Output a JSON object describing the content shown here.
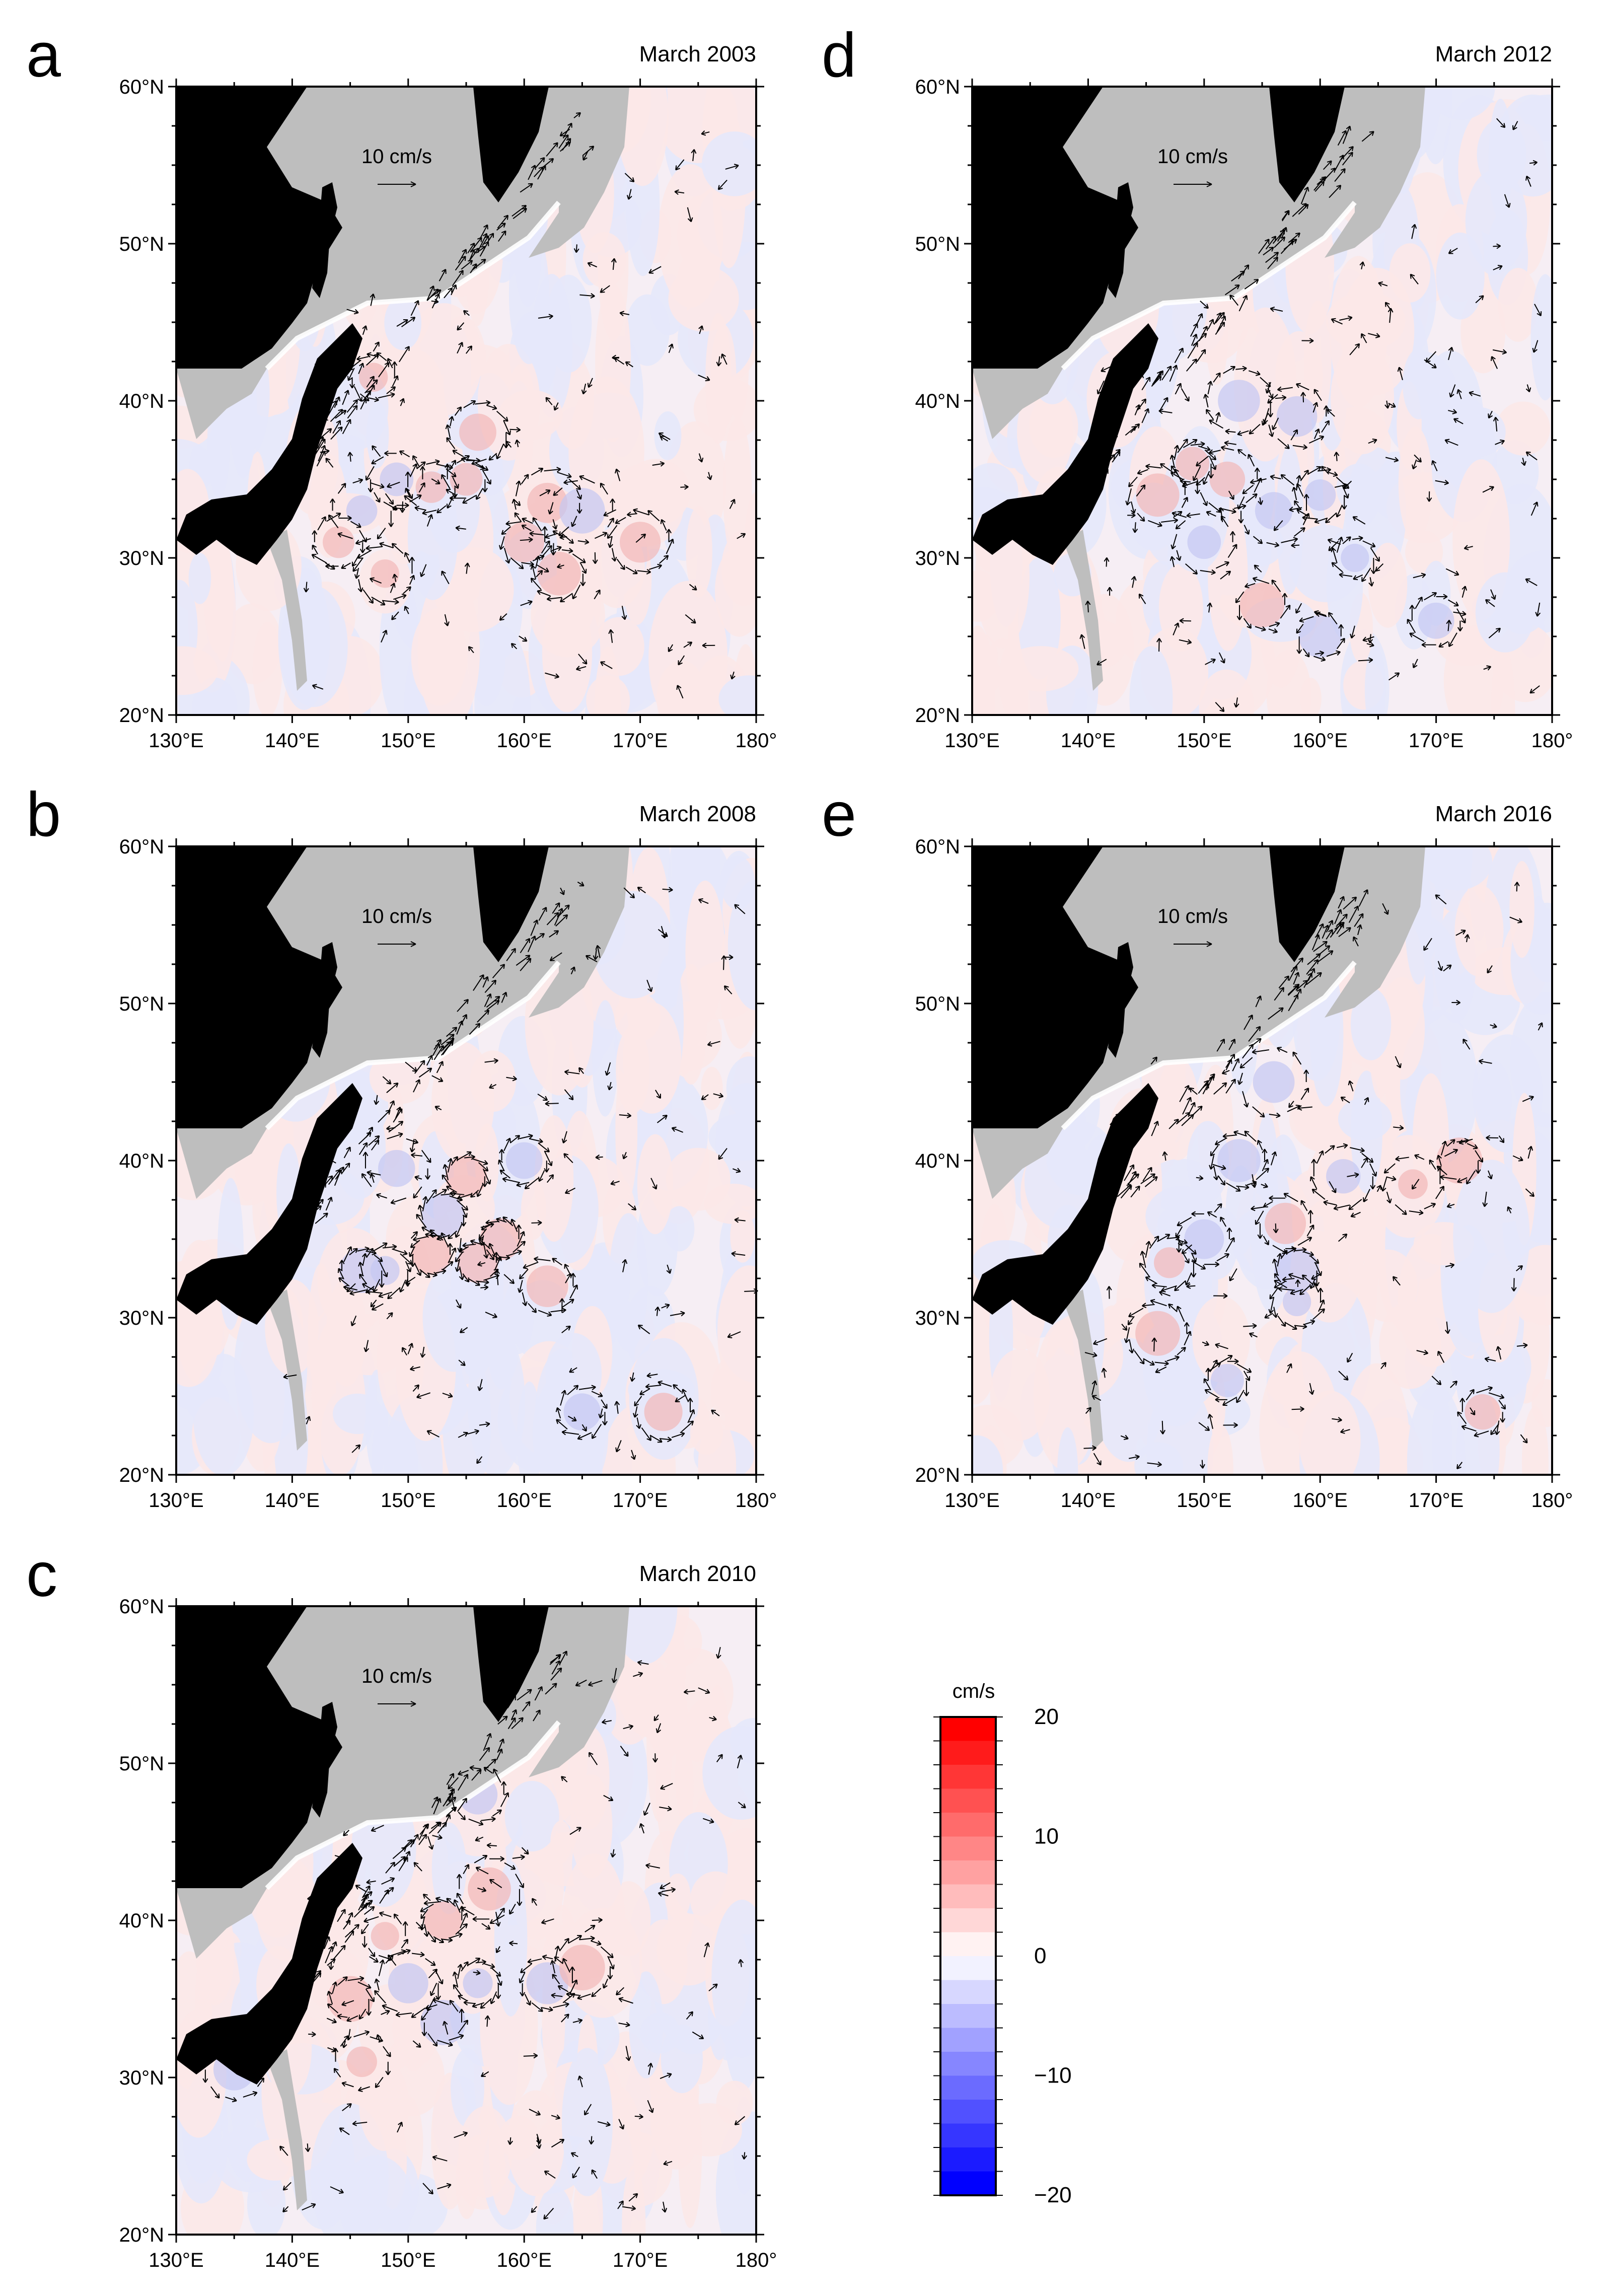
{
  "chart_data": [
    {
      "type": "vector-map",
      "panel": "a",
      "title": "March 2003",
      "scale_label": "10 cm/s",
      "xticks": [
        "130°E",
        "140°E",
        "150°E",
        "160°E",
        "170°E",
        "180°"
      ],
      "yticks": [
        "20°N",
        "30°N",
        "40°N",
        "50°N",
        "60°N"
      ],
      "xlim": [
        130,
        180
      ],
      "ylim": [
        20,
        60
      ],
      "eddies": [
        [
          149,
          35
        ],
        [
          152,
          34.5
        ],
        [
          146,
          33
        ],
        [
          155,
          35
        ],
        [
          162,
          33.5
        ],
        [
          165,
          33
        ],
        [
          160,
          31
        ],
        [
          170,
          31
        ],
        [
          148,
          29
        ],
        [
          144,
          31
        ],
        [
          163,
          29
        ],
        [
          156,
          38
        ],
        [
          147,
          41.5
        ]
      ]
    },
    {
      "type": "vector-map",
      "panel": "b",
      "title": "March 2008",
      "scale_label": "10 cm/s",
      "xticks": [
        "130°E",
        "140°E",
        "150°E",
        "160°E",
        "170°E",
        "180°"
      ],
      "yticks": [
        "20°N",
        "30°N",
        "40°N",
        "50°N",
        "60°N"
      ],
      "xlim": [
        130,
        180
      ],
      "ylim": [
        20,
        60
      ],
      "eddies": [
        [
          152,
          34
        ],
        [
          146,
          33
        ],
        [
          148,
          33
        ],
        [
          156,
          33.5
        ],
        [
          153,
          36.5
        ],
        [
          158,
          35
        ],
        [
          162,
          32
        ],
        [
          155,
          39
        ],
        [
          149,
          39.5
        ],
        [
          160,
          40
        ],
        [
          165,
          24
        ],
        [
          172,
          24
        ]
      ]
    },
    {
      "type": "vector-map",
      "panel": "c",
      "title": "March 2010",
      "scale_label": "10 cm/s",
      "xticks": [
        "130°E",
        "140°E",
        "150°E",
        "160°E",
        "170°E",
        "180°"
      ],
      "yticks": [
        "20°N",
        "30°N",
        "40°N",
        "50°N",
        "60°N"
      ],
      "xlim": [
        130,
        180
      ],
      "ylim": [
        20,
        60
      ],
      "eddies": [
        [
          145,
          35
        ],
        [
          150,
          36
        ],
        [
          153,
          33.5
        ],
        [
          156,
          36
        ],
        [
          148,
          39
        ],
        [
          153,
          40
        ],
        [
          157,
          42
        ],
        [
          162,
          36
        ],
        [
          165,
          37
        ],
        [
          135,
          30.5
        ],
        [
          146,
          31
        ],
        [
          156,
          48
        ]
      ]
    },
    {
      "type": "vector-map",
      "panel": "d",
      "title": "March 2012",
      "scale_label": "10 cm/s",
      "xticks": [
        "130°E",
        "140°E",
        "150°E",
        "160°E",
        "170°E",
        "180°"
      ],
      "yticks": [
        "20°N",
        "30°N",
        "40°N",
        "50°N",
        "60°N"
      ],
      "xlim": [
        130,
        180
      ],
      "ylim": [
        20,
        60
      ],
      "eddies": [
        [
          149,
          36
        ],
        [
          152,
          35
        ],
        [
          146,
          34
        ],
        [
          156,
          33
        ],
        [
          160,
          34
        ],
        [
          150,
          31
        ],
        [
          155,
          27
        ],
        [
          160,
          25
        ],
        [
          170,
          26
        ],
        [
          163,
          30
        ],
        [
          153,
          40
        ],
        [
          158,
          39
        ]
      ]
    },
    {
      "type": "vector-map",
      "panel": "e",
      "title": "March 2016",
      "scale_label": "10 cm/s",
      "xticks": [
        "130°E",
        "140°E",
        "150°E",
        "160°E",
        "170°E",
        "180°"
      ],
      "yticks": [
        "20°N",
        "30°N",
        "40°N",
        "50°N",
        "60°N"
      ],
      "xlim": [
        130,
        180
      ],
      "ylim": [
        20,
        60
      ],
      "eddies": [
        [
          150,
          35
        ],
        [
          147,
          33.5
        ],
        [
          157,
          36
        ],
        [
          158,
          33
        ],
        [
          162,
          39
        ],
        [
          168,
          38.5
        ],
        [
          172,
          40
        ],
        [
          153,
          40
        ],
        [
          146,
          29
        ],
        [
          152,
          26
        ],
        [
          174,
          24
        ],
        [
          156,
          45
        ],
        [
          158,
          31
        ]
      ]
    },
    {
      "type": "colorbar",
      "title": "cm/s",
      "ticks": [
        "20",
        "10",
        "0",
        "−10",
        "−20"
      ],
      "range": [
        -20,
        20
      ],
      "levels": 20,
      "low_color": "#0000ff",
      "mid_color": "#ffffff",
      "high_color": "#ff0000"
    }
  ],
  "colors": {
    "land_dark": "#000000",
    "land_grey": "#bebebe",
    "ocean_pos": "#fce8e8",
    "ocean_neg": "#e6e8fb",
    "arrow": "#000000"
  }
}
